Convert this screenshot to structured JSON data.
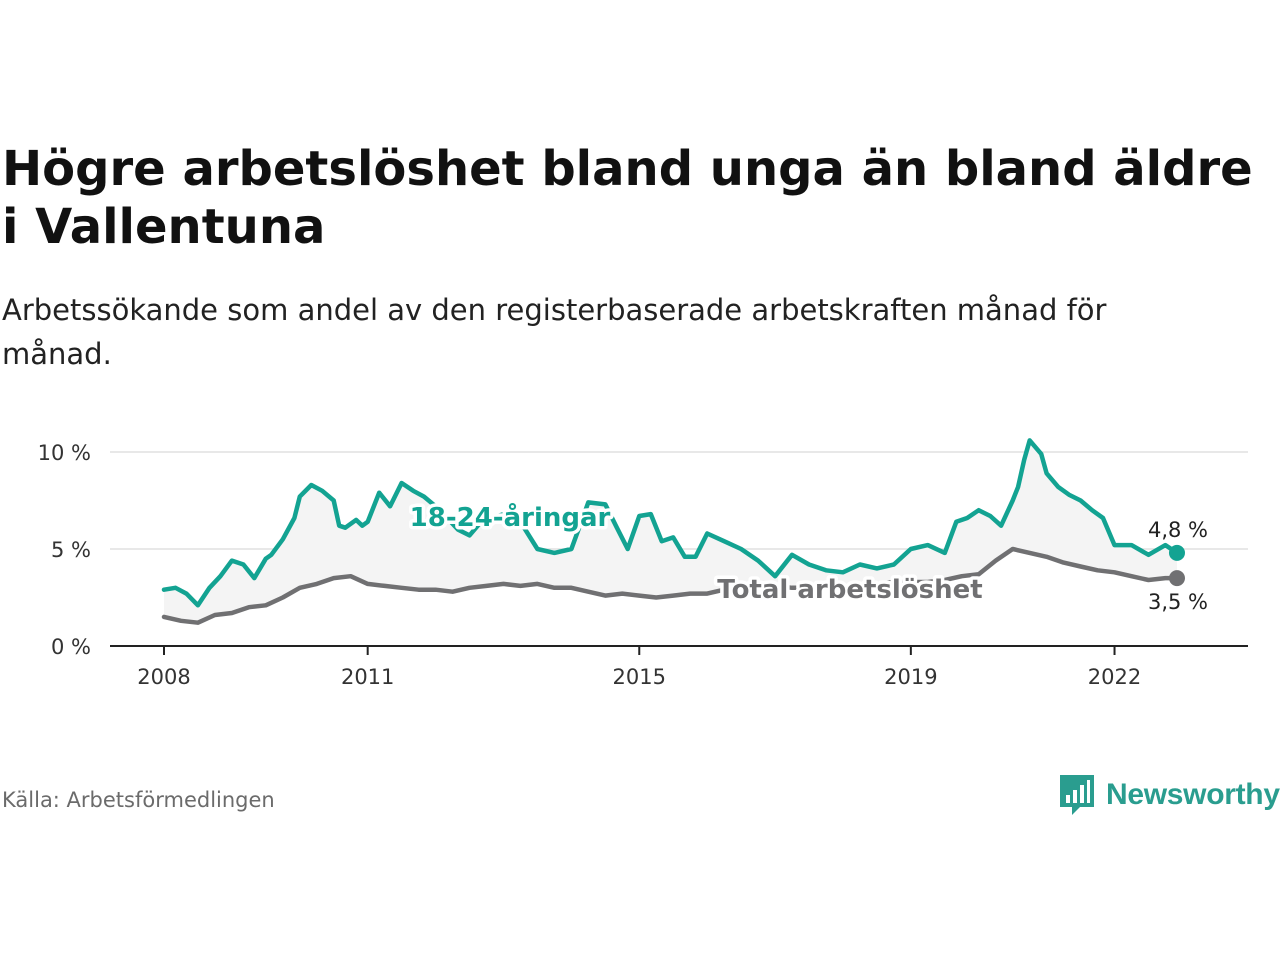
{
  "header": {
    "title": "Högre arbetslöshet bland unga än bland äldre i Vallentuna",
    "subtitle": "Arbetssökande som andel av den registerbaserade arbetskraften månad för månad."
  },
  "footer": {
    "source": "Källa: Arbetsförmedlingen",
    "brand": "Newsworthy",
    "brand_icon": "bar-chart-icon"
  },
  "colors": {
    "youth": "#13a392",
    "total": "#707072",
    "fill": "#f4f4f4",
    "grid": "#e0e0e0",
    "brand": "#2a9d8f"
  },
  "chart_data": {
    "type": "line",
    "title": "Högre arbetslöshet bland unga än bland äldre i Vallentuna",
    "xlabel": "",
    "ylabel": "",
    "xlim": [
      2008,
      2023.2
    ],
    "ylim": [
      0,
      10
    ],
    "yticks": [
      0,
      5,
      10
    ],
    "ytick_labels": [
      "0 %",
      "5 %",
      "10 %"
    ],
    "xticks": [
      2008,
      2011,
      2015,
      2019,
      2022
    ],
    "xtick_labels": [
      "2008",
      "2011",
      "2015",
      "2019",
      "2022"
    ],
    "grid": true,
    "series": [
      {
        "name": "18-24-åringar",
        "color": "#13a392",
        "end_label": "4,8 %",
        "x": [
          2008.0,
          2008.17,
          2008.33,
          2008.5,
          2008.67,
          2008.83,
          2009.0,
          2009.17,
          2009.33,
          2009.5,
          2009.58,
          2009.75,
          2009.92,
          2010.0,
          2010.17,
          2010.33,
          2010.5,
          2010.58,
          2010.67,
          2010.83,
          2010.92,
          2011.0,
          2011.17,
          2011.33,
          2011.5,
          2011.67,
          2011.83,
          2012.0,
          2012.17,
          2012.33,
          2012.5,
          2012.67,
          2012.83,
          2013.0,
          2013.25,
          2013.5,
          2013.75,
          2014.0,
          2014.25,
          2014.5,
          2014.67,
          2014.83,
          2015.0,
          2015.17,
          2015.33,
          2015.5,
          2015.67,
          2015.83,
          2016.0,
          2016.25,
          2016.5,
          2016.75,
          2017.0,
          2017.25,
          2017.5,
          2017.75,
          2018.0,
          2018.25,
          2018.5,
          2018.75,
          2019.0,
          2019.25,
          2019.5,
          2019.67,
          2019.83,
          2020.0,
          2020.17,
          2020.33,
          2020.5,
          2020.58,
          2020.67,
          2020.75,
          2020.92,
          2021.0,
          2021.17,
          2021.33,
          2021.5,
          2021.67,
          2021.83,
          2022.0,
          2022.25,
          2022.5,
          2022.75,
          2022.92
        ],
        "y": [
          2.9,
          3.0,
          2.7,
          2.1,
          3.0,
          3.6,
          4.4,
          4.2,
          3.5,
          4.5,
          4.7,
          5.5,
          6.6,
          7.7,
          8.3,
          8.0,
          7.5,
          6.2,
          6.1,
          6.5,
          6.2,
          6.4,
          7.9,
          7.2,
          8.4,
          8.0,
          7.7,
          7.2,
          6.6,
          6.0,
          5.7,
          6.4,
          6.6,
          6.8,
          6.4,
          5.0,
          4.8,
          5.0,
          7.4,
          7.3,
          6.1,
          5.0,
          6.7,
          6.8,
          5.4,
          5.6,
          4.6,
          4.6,
          5.8,
          5.4,
          5.0,
          4.4,
          3.6,
          4.7,
          4.2,
          3.9,
          3.8,
          4.2,
          4.0,
          4.2,
          5.0,
          5.2,
          4.8,
          6.4,
          6.6,
          7.0,
          6.7,
          6.2,
          7.5,
          8.2,
          9.6,
          10.6,
          9.9,
          8.9,
          8.2,
          7.8,
          7.5,
          7.0,
          6.6,
          5.2,
          5.2,
          4.7,
          5.2,
          4.8
        ]
      },
      {
        "name": "Total arbetslöshet",
        "color": "#707072",
        "end_label": "3,5 %",
        "x": [
          2008.0,
          2008.25,
          2008.5,
          2008.75,
          2009.0,
          2009.25,
          2009.5,
          2009.75,
          2010.0,
          2010.25,
          2010.5,
          2010.75,
          2011.0,
          2011.25,
          2011.5,
          2011.75,
          2012.0,
          2012.25,
          2012.5,
          2012.75,
          2013.0,
          2013.25,
          2013.5,
          2013.75,
          2014.0,
          2014.25,
          2014.5,
          2014.75,
          2015.0,
          2015.25,
          2015.5,
          2015.75,
          2016.0,
          2016.25,
          2016.5,
          2016.75,
          2017.0,
          2017.25,
          2017.5,
          2017.75,
          2018.0,
          2018.25,
          2018.5,
          2018.75,
          2019.0,
          2019.25,
          2019.5,
          2019.75,
          2020.0,
          2020.25,
          2020.5,
          2020.75,
          2021.0,
          2021.25,
          2021.5,
          2021.75,
          2022.0,
          2022.25,
          2022.5,
          2022.75,
          2022.92
        ],
        "y": [
          1.5,
          1.3,
          1.2,
          1.6,
          1.7,
          2.0,
          2.1,
          2.5,
          3.0,
          3.2,
          3.5,
          3.6,
          3.2,
          3.1,
          3.0,
          2.9,
          2.9,
          2.8,
          3.0,
          3.1,
          3.2,
          3.1,
          3.2,
          3.0,
          3.0,
          2.8,
          2.6,
          2.7,
          2.6,
          2.5,
          2.6,
          2.7,
          2.7,
          2.9,
          3.0,
          3.2,
          3.1,
          3.0,
          3.0,
          3.1,
          3.0,
          3.1,
          3.2,
          3.3,
          3.3,
          3.3,
          3.4,
          3.6,
          3.7,
          4.4,
          5.0,
          4.8,
          4.6,
          4.3,
          4.1,
          3.9,
          3.8,
          3.6,
          3.4,
          3.5,
          3.5
        ]
      }
    ]
  }
}
